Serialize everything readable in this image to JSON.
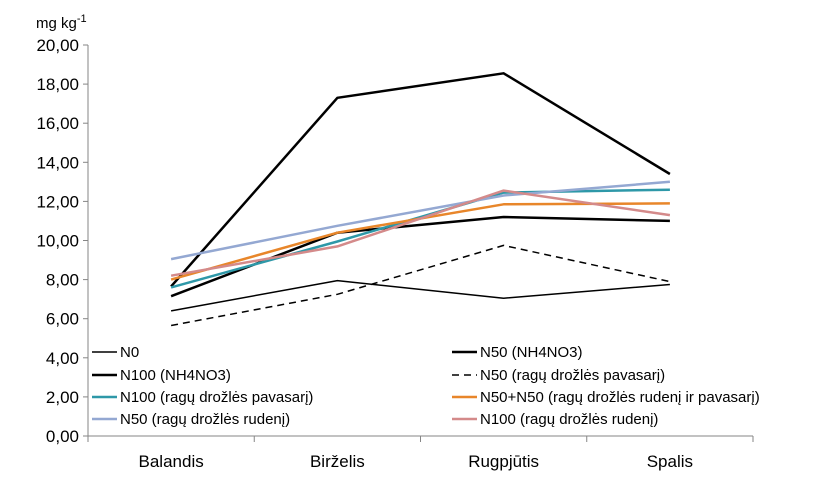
{
  "chart_data": {
    "type": "line",
    "title": "",
    "xlabel": "",
    "ylabel": "mg kg",
    "ylabel_superscript": "-1",
    "ylim": [
      0,
      20
    ],
    "ystep": 2,
    "yticks": [
      "0,00",
      "2,00",
      "4,00",
      "6,00",
      "8,00",
      "10,00",
      "12,00",
      "14,00",
      "16,00",
      "18,00",
      "20,00"
    ],
    "grid": false,
    "legend_position": "lower-center",
    "categories": [
      "Balandis",
      "Birželis",
      "Rugpjūtis",
      "Spalis"
    ],
    "series": [
      {
        "name": "N0",
        "color": "#000000",
        "dash": "solid",
        "weight": "thin",
        "values": [
          6.4,
          7.95,
          7.05,
          7.75
        ]
      },
      {
        "name": "N50 (NH4NO3)",
        "color": "#000000",
        "dash": "solid",
        "weight": "thick",
        "values": [
          7.15,
          10.4,
          11.2,
          11.0
        ]
      },
      {
        "name": "N100 (NH4NO3)",
        "color": "#000000",
        "dash": "solid",
        "weight": "thick",
        "values": [
          7.65,
          17.3,
          18.55,
          13.4
        ]
      },
      {
        "name": "N50 (ragų drožlės pavasarį)",
        "color": "#000000",
        "dash": "dashed",
        "weight": "thin",
        "values": [
          5.65,
          7.25,
          9.75,
          7.9
        ]
      },
      {
        "name": "N100 (ragų drožlės pavasarį)",
        "color": "#2e98a8",
        "dash": "solid",
        "weight": "thick",
        "values": [
          7.6,
          9.95,
          12.45,
          12.6
        ]
      },
      {
        "name": "N50+N50  (ragų drožlės rudenį ir pavasarį)",
        "color": "#e8862a",
        "dash": "solid",
        "weight": "thick",
        "values": [
          8.0,
          10.4,
          11.85,
          11.9
        ]
      },
      {
        "name": "N50 (ragų drožlės rudenį)",
        "color": "#94a8d2",
        "dash": "solid",
        "weight": "thick",
        "values": [
          9.05,
          10.75,
          12.3,
          13.0
        ]
      },
      {
        "name": "N100 (ragų drožlės rudenį)",
        "color": "#d48a8a",
        "dash": "solid",
        "weight": "thick",
        "values": [
          8.2,
          9.7,
          12.55,
          11.3
        ]
      }
    ]
  }
}
